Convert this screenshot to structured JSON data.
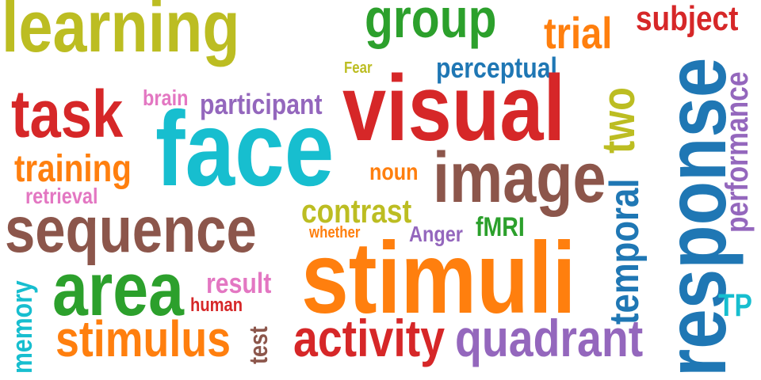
{
  "colors": {
    "olive": "#bcbd22",
    "green": "#2ca02c",
    "orange": "#ff7f0e",
    "red": "#d62728",
    "blue": "#1f77b4",
    "purple": "#9467bd",
    "pink": "#e377c2",
    "cyan": "#17becf",
    "brown": "#8c564b"
  },
  "words": {
    "learning": "learning",
    "group": "group",
    "trial": "trial",
    "subject": "subject",
    "fear": "Fear",
    "perceptual": "perceptual",
    "brain": "brain",
    "participant": "participant",
    "task": "task",
    "visual": "visual",
    "two": "two",
    "response": "response",
    "performance": "performance",
    "face": "face",
    "training": "training",
    "noun": "noun",
    "image": "image",
    "retrieval": "retrieval",
    "temporal": "temporal",
    "contrast": "contrast",
    "sequence": "sequence",
    "whether": "whether",
    "anger": "Anger",
    "fmri": "fMRI",
    "stimuli": "stimuli",
    "memory": "memory",
    "area": "area",
    "result": "result",
    "human": "human",
    "test": "test",
    "tp": "TP",
    "stimulus": "stimulus",
    "activity": "activity",
    "quadrant": "quadrant"
  }
}
